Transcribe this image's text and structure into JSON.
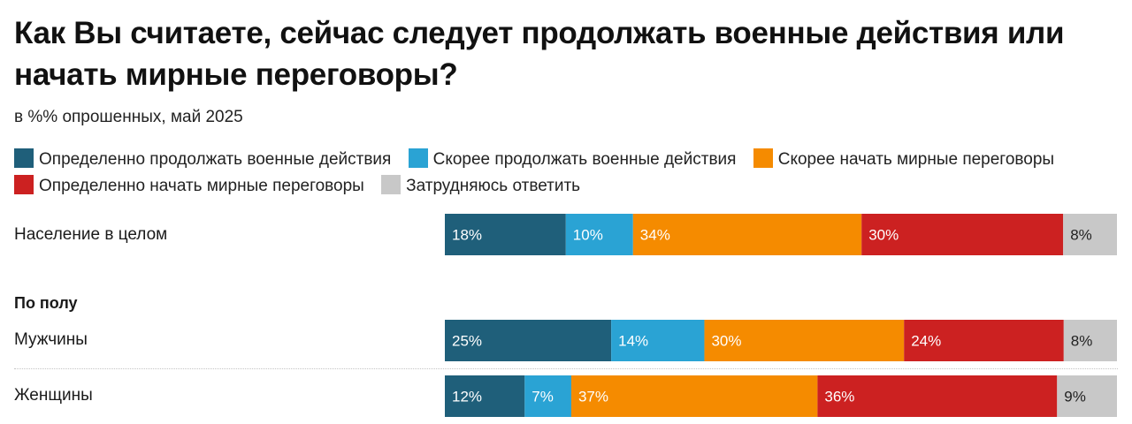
{
  "colors": {
    "definitely_continue": "#1f5f7a",
    "rather_continue": "#2aa3d4",
    "rather_peace": "#f58b00",
    "definitely_peace": "#cc2121",
    "dont_know": "#c8c8c8"
  },
  "chart_data": {
    "type": "bar",
    "orientation": "horizontal",
    "stacked": true,
    "title": "Как Вы считаете, сейчас следует продолжать военные действия или начать мирные переговоры?",
    "subtitle": "в %% опрошенных, май 2025",
    "xlim": [
      0,
      100
    ],
    "legend": [
      "Определенно продолжать военные действия",
      "Скорее продолжать военные действия",
      "Скорее начать мирные переговоры",
      "Определенно начать мирные переговоры",
      "Затрудняюсь ответить"
    ],
    "series": [
      {
        "name": "Определенно продолжать военные действия",
        "values": [
          18,
          25,
          12
        ]
      },
      {
        "name": "Скорее продолжать военные действия",
        "values": [
          10,
          14,
          7
        ]
      },
      {
        "name": "Скорее начать мирные переговоры",
        "values": [
          34,
          30,
          37
        ]
      },
      {
        "name": "Определенно начать мирные переговоры",
        "values": [
          30,
          24,
          36
        ]
      },
      {
        "name": "Затрудняюсь ответить",
        "values": [
          8,
          8,
          9
        ]
      }
    ],
    "categories": [
      "Население в целом",
      "Мужчины",
      "Женщины"
    ],
    "groups": [
      {
        "label": "",
        "rows": [
          "Население в целом"
        ]
      },
      {
        "label": "По полу",
        "rows": [
          "Мужчины",
          "Женщины"
        ]
      }
    ]
  }
}
